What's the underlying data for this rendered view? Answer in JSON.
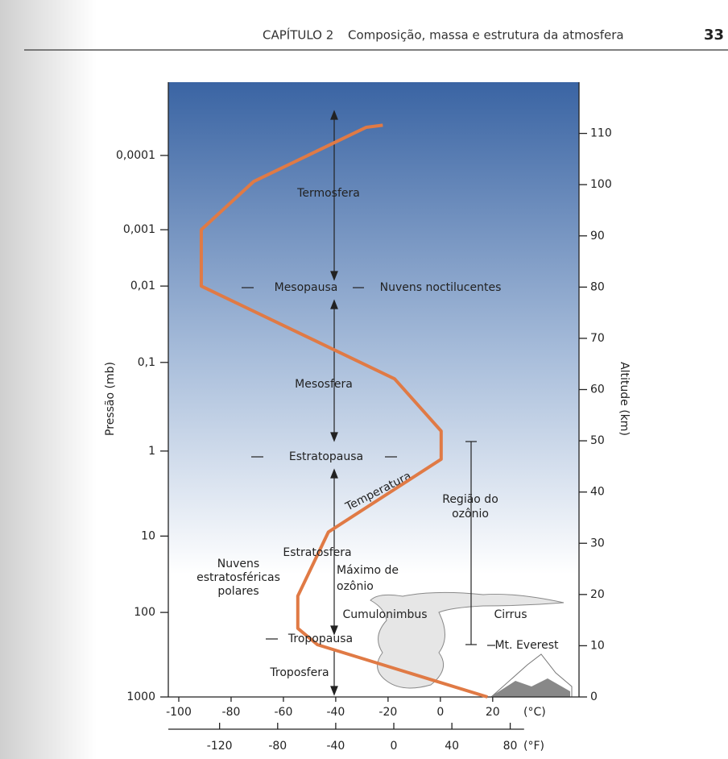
{
  "header": {
    "chapter": "CAPÍTULO 2",
    "title": "Composição, massa e estrutura da atmosfera",
    "page": "33"
  },
  "chart_data": {
    "type": "line",
    "xlabel": "(°C)",
    "x2label": "(°F)",
    "ylabel": "Altitude (km)",
    "y2label": "Pressão (mb)",
    "xlim": [
      -104,
      53
    ],
    "ylim": [
      0,
      120
    ],
    "xticks": [
      -100,
      -80,
      -60,
      -40,
      -20,
      0,
      20
    ],
    "yticks": [
      0,
      10,
      20,
      30,
      40,
      50,
      60,
      70,
      80,
      90,
      100,
      110
    ],
    "pressure_ticks": [
      {
        "value": 0,
        "label": "1000"
      },
      {
        "value": 16.5,
        "label": "100"
      },
      {
        "value": 31.4,
        "label": "10"
      },
      {
        "value": 48,
        "label": "1"
      },
      {
        "value": 65.3,
        "label": "0,1"
      },
      {
        "value": 80.2,
        "label": "0,01"
      },
      {
        "value": 91.2,
        "label": "0,001"
      },
      {
        "value": 105.7,
        "label": "0,0001"
      }
    ],
    "fahrenheit_ticks": [
      {
        "value": -84.4,
        "label": "-120"
      },
      {
        "value": -62.2,
        "label": "-80"
      },
      {
        "value": -40,
        "label": "-40"
      },
      {
        "value": -17.8,
        "label": "0"
      },
      {
        "value": 4.4,
        "label": "40"
      },
      {
        "value": 26.7,
        "label": "80"
      }
    ],
    "series": [
      {
        "name": "Temperatura",
        "color": "#e07a45",
        "x": [
          18,
          -47,
          -54.5,
          -54.5,
          -42.8,
          0.3,
          0.3,
          -17.5,
          -91.4,
          -91.4,
          -71.4,
          -28.3,
          -22
        ],
        "values": [
          0,
          10.2,
          13.4,
          19.7,
          32.2,
          46.4,
          51.9,
          62.1,
          80.2,
          91.2,
          100.6,
          111.2,
          111.6
        ]
      }
    ],
    "annotations": [
      "Termosfera",
      "Mesopausa",
      "Nuvens noctilucentes",
      "Mesosfera",
      "Estratopausa",
      "Região do",
      "ozônio",
      "Estratosfera",
      "Nuvens",
      "estratosféricas",
      "polares",
      "Máximo de",
      "ozônio",
      "Cumulonimbus",
      "Cirrus",
      "Tropopausa",
      "Mt. Everest",
      "Troposfera"
    ]
  }
}
